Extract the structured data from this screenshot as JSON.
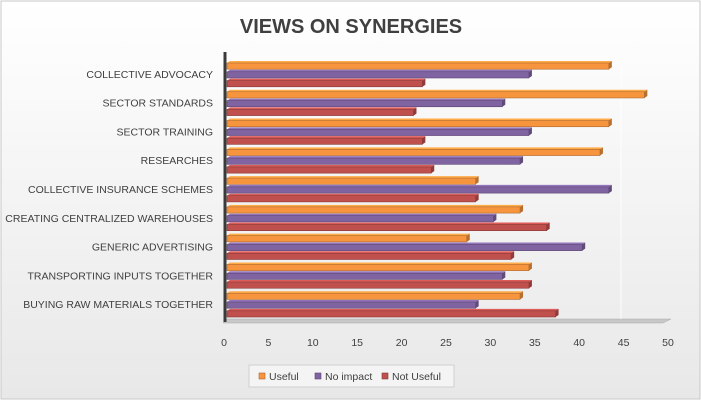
{
  "chart_data": {
    "type": "bar",
    "orientation": "horizontal",
    "title": "VIEWS ON SYNERGIES",
    "xlabel": "",
    "ylabel": "",
    "xlim": [
      0,
      50
    ],
    "ticks": [
      0,
      5,
      10,
      15,
      20,
      25,
      30,
      35,
      40,
      45,
      50
    ],
    "grid": false,
    "legend_position": "bottom",
    "categories": [
      "COLLECTIVE ADVOCACY",
      "SECTOR STANDARDS",
      "SECTOR TRAINING",
      "RESEARCHES",
      "COLLECTIVE INSURANCE SCHEMES",
      "CREATING CENTRALIZED WAREHOUSES",
      "GENERIC ADVERTISING",
      "TRANSPORTING INPUTS TOGETHER",
      "BUYING RAW MATERIALS TOGETHER"
    ],
    "series": [
      {
        "name": "Useful",
        "color": "#f7953f",
        "values": [
          43,
          47,
          43,
          42,
          28,
          33,
          27,
          34,
          33
        ]
      },
      {
        "name": "No impact",
        "color": "#8064a2",
        "values": [
          34,
          31,
          34,
          33,
          43,
          30,
          40,
          31,
          28
        ]
      },
      {
        "name": "Not Useful",
        "color": "#c0504d",
        "values": [
          22,
          21,
          22,
          23,
          28,
          36,
          32,
          34,
          37
        ]
      }
    ]
  }
}
